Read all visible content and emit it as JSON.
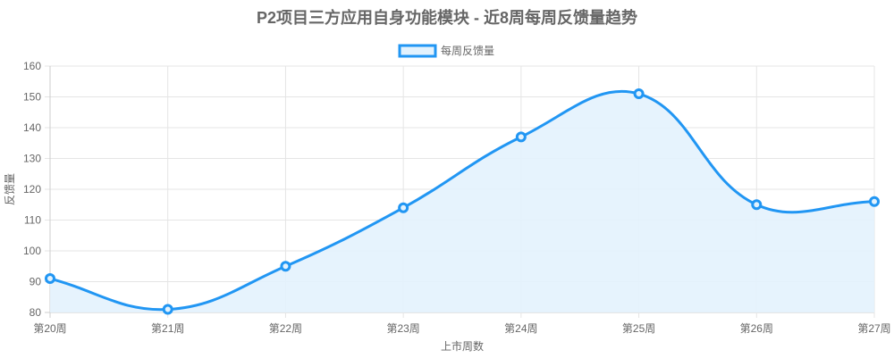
{
  "chart_data": {
    "type": "line",
    "title": "P2项目三方应用自身功能模块 - 近8周每周反馈量趋势",
    "xlabel": "上市周数",
    "ylabel": "反馈量",
    "categories": [
      "第20周",
      "第21周",
      "第22周",
      "第23周",
      "第24周",
      "第25周",
      "第26周",
      "第27周"
    ],
    "series": [
      {
        "name": "每周反馈量",
        "values": [
          91,
          81,
          95,
          114,
          137,
          151,
          115,
          116
        ]
      }
    ],
    "ylim": [
      80,
      160
    ],
    "yticks": [
      80,
      90,
      100,
      110,
      120,
      130,
      140,
      150,
      160
    ],
    "grid": true,
    "fill": true,
    "smooth": true,
    "legend": "top-center",
    "colors": {
      "line": "#2196F3",
      "fill": "#E3F2FD",
      "grid": "#e5e5e5",
      "text": "#666666"
    }
  }
}
